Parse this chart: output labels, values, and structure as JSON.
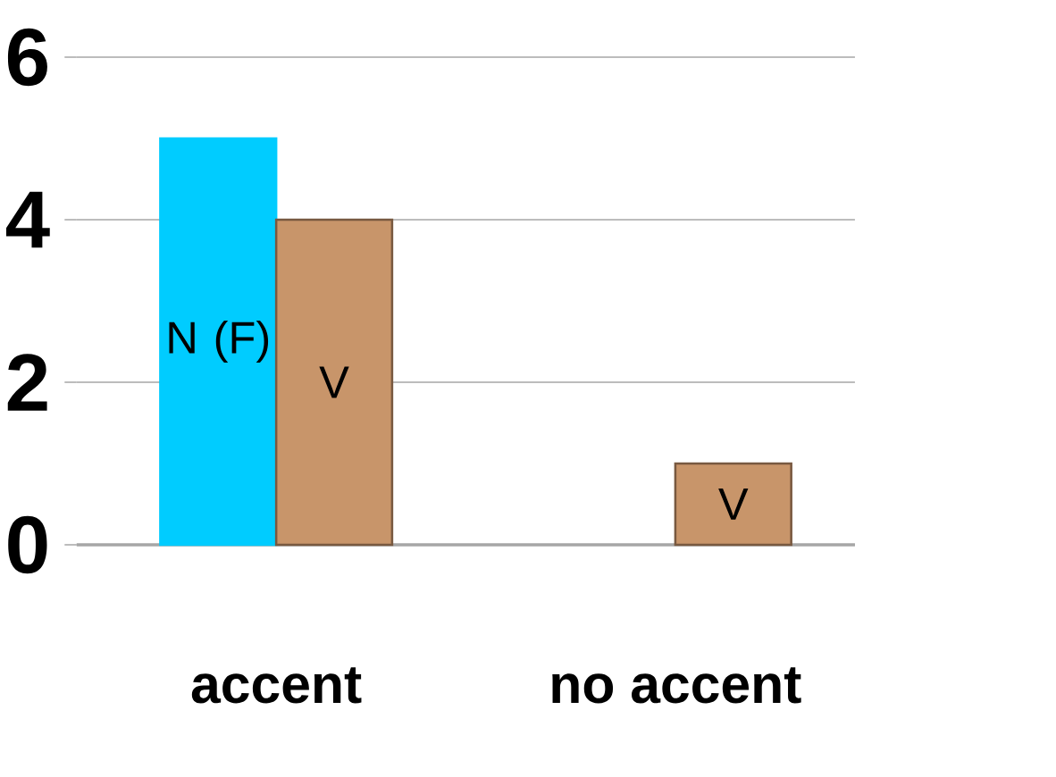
{
  "chart_data": {
    "type": "bar",
    "categories": [
      "accent",
      "no accent"
    ],
    "series": [
      {
        "name": "N (F)",
        "color": "#00ccff",
        "values": [
          5,
          null
        ]
      },
      {
        "name": "V",
        "color": "#c8956a",
        "values": [
          4,
          1
        ]
      }
    ],
    "ylim": [
      0,
      6
    ],
    "yticks": [
      0,
      2,
      4,
      6
    ],
    "grid": "y",
    "legend": false
  }
}
